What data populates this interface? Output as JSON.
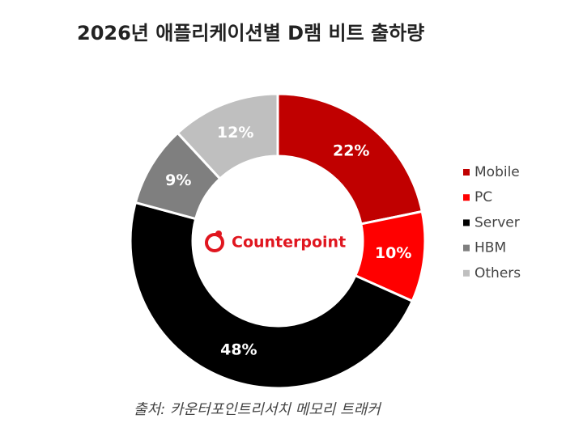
{
  "chart_data": {
    "type": "donut",
    "title": "2026년 애플리케이션별 D램 비트 출하량",
    "center_label": "Counterpoint",
    "source": "출처: 카운터포인트리서치 메모리 트래커",
    "series": [
      {
        "name": "Mobile",
        "color": "#c00000",
        "values": [
          22
        ],
        "value_labels": [
          "22%"
        ]
      },
      {
        "name": "PC",
        "color": "#ff0000",
        "values": [
          10
        ],
        "value_labels": [
          "10%"
        ]
      },
      {
        "name": "Server",
        "color": "#000000",
        "values": [
          48
        ],
        "value_labels": [
          "48%"
        ]
      },
      {
        "name": "HBM",
        "color": "#7f7f7f",
        "values": [
          9
        ],
        "value_labels": [
          "9%"
        ]
      },
      {
        "name": "Others",
        "color": "#bfbfbf",
        "values": [
          12
        ],
        "value_labels": [
          "12%"
        ]
      }
    ],
    "legend": "right"
  }
}
